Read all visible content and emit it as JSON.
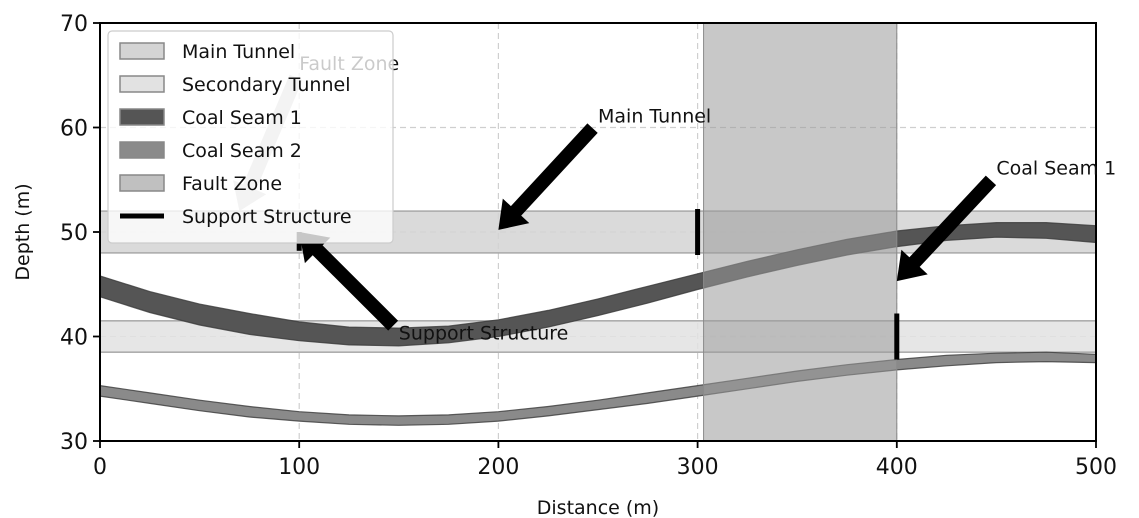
{
  "chart_data": {
    "type": "area",
    "xlabel": "Distance (m)",
    "ylabel": "Depth (m)",
    "xlim": [
      0,
      500
    ],
    "ylim": [
      30,
      70
    ],
    "xticks": [
      0,
      100,
      200,
      300,
      400,
      500
    ],
    "yticks": [
      30,
      40,
      50,
      60,
      70
    ],
    "grid": true,
    "legend_position": "top-left",
    "legend": [
      {
        "label": "Main Tunnel",
        "kind": "patch",
        "color": "#d4d4d4"
      },
      {
        "label": "Secondary Tunnel",
        "kind": "patch",
        "color": "#e2e2e2"
      },
      {
        "label": "Coal Seam 1",
        "kind": "patch",
        "color": "#555555"
      },
      {
        "label": "Coal Seam 2",
        "kind": "patch",
        "color": "#8a8a8a"
      },
      {
        "label": "Fault Zone",
        "kind": "patch",
        "color": "#c0c0c0"
      },
      {
        "label": "Support Structure",
        "kind": "line",
        "color": "#000000"
      }
    ],
    "tunnels": [
      {
        "name": "Main Tunnel",
        "y_bottom": 48,
        "y_top": 52,
        "color": "#d4d4d4"
      },
      {
        "name": "Secondary Tunnel",
        "y_bottom": 38.5,
        "y_top": 41.5,
        "color": "#e2e2e2"
      }
    ],
    "fault_zone": {
      "name": "Fault Zone",
      "x_start": 303,
      "x_end": 400,
      "color": "#bdbdbd"
    },
    "coal_seams": [
      {
        "name": "Coal Seam 1",
        "color": "#555555",
        "x": [
          0,
          25,
          50,
          75,
          100,
          125,
          150,
          175,
          200,
          225,
          250,
          275,
          300,
          325,
          350,
          375,
          400,
          425,
          450,
          475,
          500
        ],
        "y_lower": [
          43.8,
          42.3,
          41.1,
          40.2,
          39.6,
          39.2,
          39.1,
          39.4,
          40.0,
          40.9,
          42.0,
          43.2,
          44.5,
          45.7,
          46.8,
          47.8,
          48.6,
          49.2,
          49.5,
          49.4,
          49.0
        ],
        "y_upper": [
          45.8,
          44.3,
          43.1,
          42.2,
          41.4,
          40.9,
          40.8,
          41.0,
          41.6,
          42.5,
          43.6,
          44.8,
          46.0,
          47.2,
          48.3,
          49.3,
          50.1,
          50.6,
          50.9,
          50.9,
          50.6
        ]
      },
      {
        "name": "Coal Seam 2",
        "color": "#8a8a8a",
        "x": [
          0,
          25,
          50,
          75,
          100,
          125,
          150,
          175,
          200,
          225,
          250,
          275,
          300,
          325,
          350,
          375,
          400,
          425,
          450,
          475,
          500
        ],
        "y_lower": [
          34.3,
          33.6,
          32.9,
          32.3,
          31.9,
          31.6,
          31.5,
          31.6,
          31.9,
          32.4,
          33.0,
          33.6,
          34.3,
          35.0,
          35.7,
          36.3,
          36.8,
          37.2,
          37.5,
          37.6,
          37.5
        ],
        "y_upper": [
          35.3,
          34.6,
          33.9,
          33.3,
          32.8,
          32.5,
          32.4,
          32.5,
          32.8,
          33.3,
          33.9,
          34.6,
          35.3,
          36.0,
          36.7,
          37.3,
          37.8,
          38.2,
          38.4,
          38.5,
          38.3
        ]
      }
    ],
    "support_structures": [
      {
        "x": 100,
        "y_from": 48.2,
        "y_to": 50.0
      },
      {
        "x": 300,
        "y_from": 47.8,
        "y_to": 52.2
      },
      {
        "x": 400,
        "y_from": 37.8,
        "y_to": 42.2
      }
    ],
    "annotations": [
      {
        "text": "Fault Zone",
        "text_x": 100,
        "text_y": 65.5,
        "arrow_to_x": 70,
        "arrow_to_y": 52,
        "color": "#c8c8c8"
      },
      {
        "text": "Main Tunnel",
        "text_x": 250,
        "text_y": 60.5,
        "arrow_to_x": 200,
        "arrow_to_y": 50.2,
        "color": "#000000"
      },
      {
        "text": "Coal Seam 1",
        "text_x": 450,
        "text_y": 55.5,
        "arrow_to_x": 400,
        "arrow_to_y": 45.3,
        "color": "#000000"
      },
      {
        "text": "Support Structure",
        "text_x": 150,
        "text_y": 40.5,
        "arrow_to_x": 100,
        "arrow_to_y": 50.0,
        "color": "#000000"
      }
    ]
  }
}
